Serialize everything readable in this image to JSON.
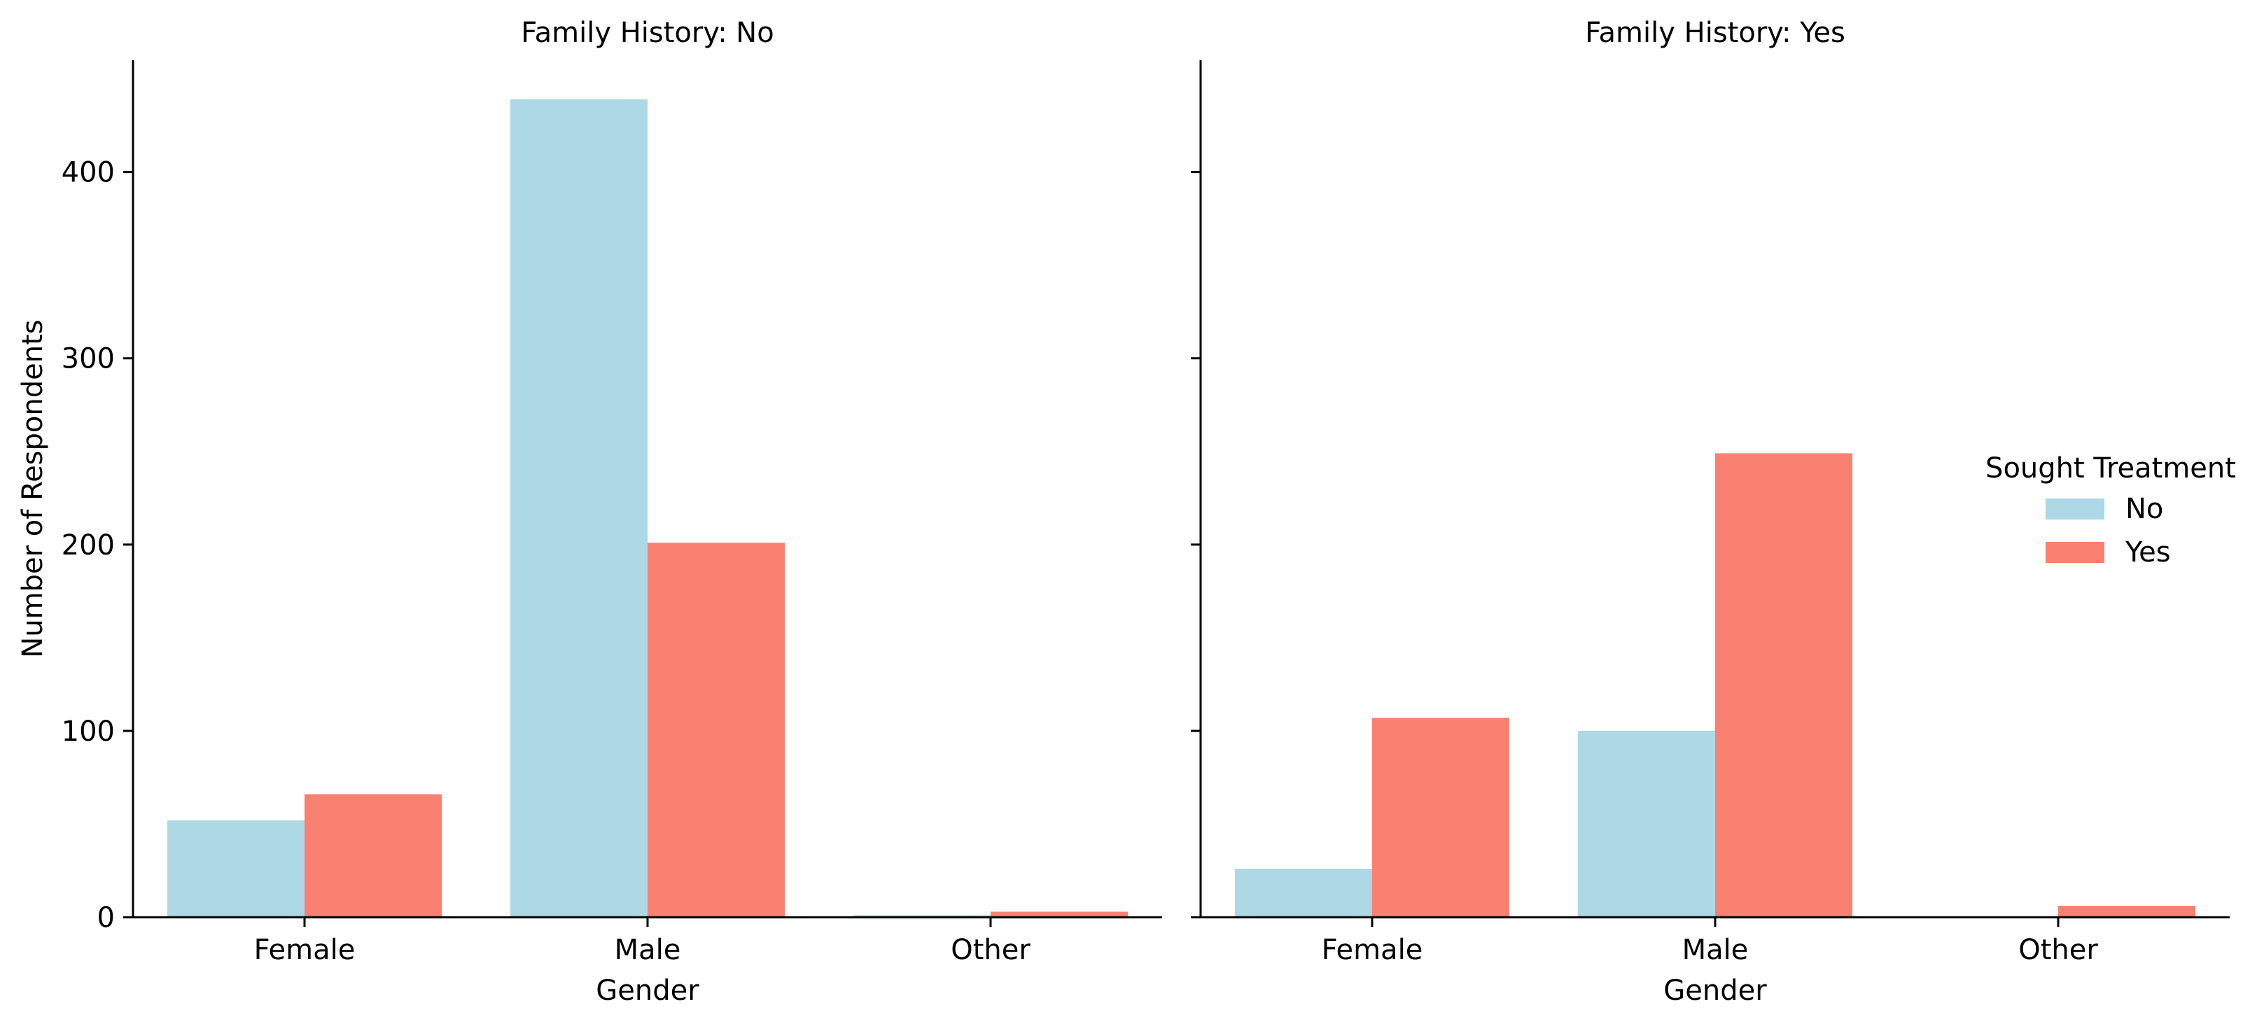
{
  "chart_data": {
    "type": "bar",
    "ylabel": "Number of Respondents",
    "ylim": [
      0,
      460
    ],
    "yticks": [
      0,
      100,
      200,
      300,
      400
    ],
    "legend": {
      "title": "Sought Treatment",
      "placement": "right",
      "entries": [
        {
          "label": "No",
          "color": "#add8e6"
        },
        {
          "label": "Yes",
          "color": "#fa8072"
        }
      ]
    },
    "panels": [
      {
        "title": "Family History: No",
        "xlabel": "Gender",
        "categories": [
          "Female",
          "Male",
          "Other"
        ],
        "series": [
          {
            "name": "No",
            "values": [
              52,
              439,
              1
            ]
          },
          {
            "name": "Yes",
            "values": [
              66,
              201,
              3
            ]
          }
        ]
      },
      {
        "title": "Family History: Yes",
        "xlabel": "Gender",
        "categories": [
          "Female",
          "Male",
          "Other"
        ],
        "series": [
          {
            "name": "No",
            "values": [
              26,
              100,
              0
            ]
          },
          {
            "name": "Yes",
            "values": [
              107,
              249,
              6
            ]
          }
        ]
      }
    ],
    "grid": false
  }
}
